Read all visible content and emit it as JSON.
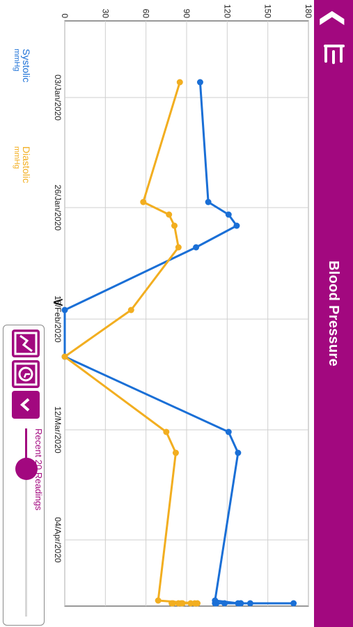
{
  "header": {
    "title": "Blood Pressure",
    "back_icon": "chevron-left-icon",
    "menu_icon": "menu-icon",
    "bg_color": "#a2087f"
  },
  "legend": {
    "systolic_label": "Systolic",
    "systolic_unit": "mmHg",
    "systolic_color": "#1a6fd6",
    "diastolic_label": "Diastolic",
    "diastolic_unit": "mmHg",
    "diastolic_color": "#f2ae20"
  },
  "controls": {
    "range_label": "Recent 20 Readings",
    "range_value": 20,
    "collapse_icon": "chevron-down-icon",
    "history_icon": "history-icon",
    "chart_icon": "line-chart-icon"
  },
  "expand_icon": "chevron-down-icon",
  "chart_data": {
    "type": "line",
    "ylim": [
      0,
      180
    ],
    "y_ticks": [
      "0",
      "30",
      "60",
      "90",
      "120",
      "150",
      "180"
    ],
    "x_ticks": [
      "03/Jan/2020",
      "26/Jan/2020",
      "18/Feb/2020",
      "12/Mar/2020",
      "04/Apr/2020"
    ],
    "grid": true,
    "series": [
      {
        "name": "Systolic",
        "values": [
          100,
          106,
          121,
          127,
          97,
          0,
          0,
          121,
          128,
          111,
          128,
          130,
          130,
          169,
          118,
          111,
          137,
          112
        ]
      },
      {
        "name": "Diastolic",
        "values": [
          85,
          58,
          77,
          81,
          84,
          49,
          0,
          75,
          82,
          69,
          96,
          93,
          84,
          86,
          80,
          79,
          98,
          87
        ]
      }
    ]
  }
}
